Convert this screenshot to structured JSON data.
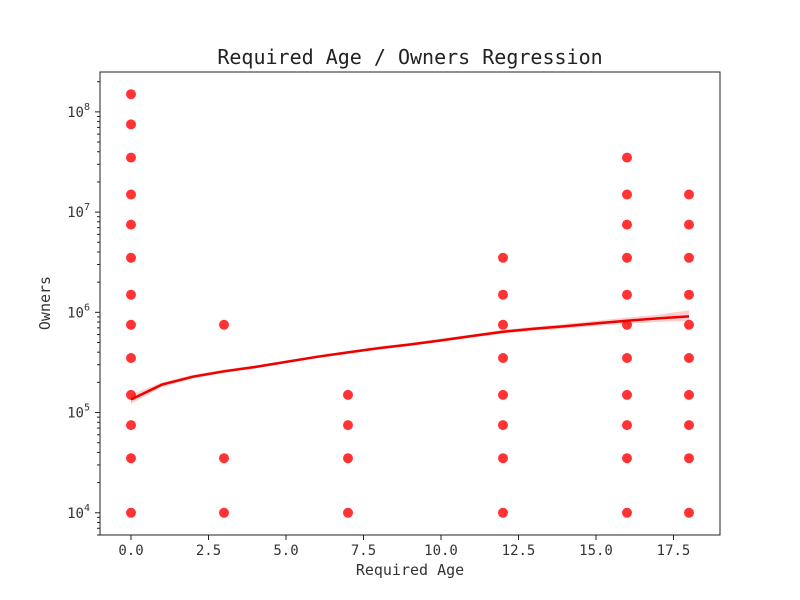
{
  "chart_data": {
    "type": "scatter",
    "title": "Required Age / Owners Regression",
    "xlabel": "Required Age",
    "ylabel": "Owners",
    "xlim": [
      -1.0,
      19.0
    ],
    "ylim": [
      6000,
      250000000
    ],
    "yscale": "log",
    "grid": false,
    "x_ticks": [
      0.0,
      2.5,
      5.0,
      7.5,
      10.0,
      12.5,
      15.0,
      17.5
    ],
    "x_tick_labels": [
      "0.0",
      "2.5",
      "5.0",
      "7.5",
      "10.0",
      "12.5",
      "15.0",
      "17.5"
    ],
    "y_ticks": [
      10000,
      100000,
      1000000,
      10000000,
      100000000
    ],
    "y_tick_labels": [
      {
        "base": "10",
        "exp": "4"
      },
      {
        "base": "10",
        "exp": "5"
      },
      {
        "base": "10",
        "exp": "6"
      },
      {
        "base": "10",
        "exp": "7"
      },
      {
        "base": "10",
        "exp": "8"
      }
    ],
    "point_color": "#ff0000",
    "line_color": "#ee0000",
    "band_color": "#f4a0a0",
    "points": [
      {
        "x": 0,
        "y": 150000000
      },
      {
        "x": 0,
        "y": 75000000
      },
      {
        "x": 0,
        "y": 35000000
      },
      {
        "x": 0,
        "y": 15000000
      },
      {
        "x": 0,
        "y": 7500000
      },
      {
        "x": 0,
        "y": 3500000
      },
      {
        "x": 0,
        "y": 1500000
      },
      {
        "x": 0,
        "y": 750000
      },
      {
        "x": 0,
        "y": 350000
      },
      {
        "x": 0,
        "y": 150000
      },
      {
        "x": 0,
        "y": 75000
      },
      {
        "x": 0,
        "y": 35000
      },
      {
        "x": 0,
        "y": 10000
      },
      {
        "x": 3,
        "y": 750000
      },
      {
        "x": 3,
        "y": 35000
      },
      {
        "x": 3,
        "y": 10000
      },
      {
        "x": 7,
        "y": 150000
      },
      {
        "x": 7,
        "y": 75000
      },
      {
        "x": 7,
        "y": 35000
      },
      {
        "x": 7,
        "y": 10000
      },
      {
        "x": 12,
        "y": 3500000
      },
      {
        "x": 12,
        "y": 1500000
      },
      {
        "x": 12,
        "y": 750000
      },
      {
        "x": 12,
        "y": 350000
      },
      {
        "x": 12,
        "y": 150000
      },
      {
        "x": 12,
        "y": 75000
      },
      {
        "x": 12,
        "y": 35000
      },
      {
        "x": 12,
        "y": 10000
      },
      {
        "x": 16,
        "y": 35000000
      },
      {
        "x": 16,
        "y": 15000000
      },
      {
        "x": 16,
        "y": 7500000
      },
      {
        "x": 16,
        "y": 3500000
      },
      {
        "x": 16,
        "y": 1500000
      },
      {
        "x": 16,
        "y": 750000
      },
      {
        "x": 16,
        "y": 350000
      },
      {
        "x": 16,
        "y": 150000
      },
      {
        "x": 16,
        "y": 75000
      },
      {
        "x": 16,
        "y": 35000
      },
      {
        "x": 16,
        "y": 10000
      },
      {
        "x": 18,
        "y": 15000000
      },
      {
        "x": 18,
        "y": 7500000
      },
      {
        "x": 18,
        "y": 3500000
      },
      {
        "x": 18,
        "y": 1500000
      },
      {
        "x": 18,
        "y": 750000
      },
      {
        "x": 18,
        "y": 350000
      },
      {
        "x": 18,
        "y": 150000
      },
      {
        "x": 18,
        "y": 75000
      },
      {
        "x": 18,
        "y": 35000
      },
      {
        "x": 18,
        "y": 10000
      }
    ],
    "regression": {
      "x": [
        0,
        1,
        2,
        3,
        4,
        5,
        6,
        7,
        8,
        9,
        10,
        11,
        12,
        13,
        14,
        15,
        16,
        17,
        18
      ],
      "y": [
        135000,
        190000,
        228000,
        258000,
        285000,
        320000,
        360000,
        398000,
        440000,
        478000,
        525000,
        580000,
        640000,
        685000,
        725000,
        775000,
        825000,
        870000,
        910000
      ],
      "band_upper": [
        150000,
        200000,
        238000,
        268000,
        295000,
        330000,
        372000,
        412000,
        455000,
        495000,
        545000,
        602000,
        668000,
        718000,
        765000,
        825000,
        885000,
        945000,
        1050000
      ],
      "band_lower": [
        122000,
        180000,
        218000,
        248000,
        275000,
        310000,
        348000,
        384000,
        425000,
        461000,
        506000,
        558000,
        614000,
        655000,
        690000,
        730000,
        770000,
        800000,
        825000
      ]
    }
  }
}
